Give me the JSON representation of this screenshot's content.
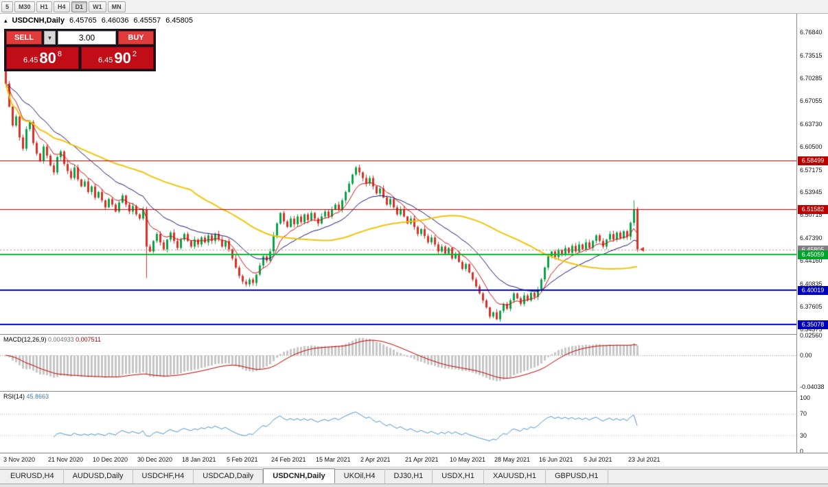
{
  "window": {
    "toolbar": {
      "timeframes": [
        "5",
        "M30",
        "H1",
        "H4",
        "D1",
        "W1",
        "MN"
      ],
      "active": "D1"
    }
  },
  "chart_header": {
    "collapse_icon": "▴",
    "title": "USDCNH,Daily",
    "open": "6.45765",
    "high": "6.46036",
    "low": "6.45557",
    "close": "6.45805"
  },
  "trade_panel": {
    "sell_label": "SELL",
    "buy_label": "BUY",
    "lot": "3.00",
    "spinner_icon": "▼",
    "sell_price": {
      "prefix": "6.45",
      "big": "80",
      "sup": "8"
    },
    "buy_price": {
      "prefix": "6.45",
      "big": "90",
      "sup": "2"
    }
  },
  "indicator_labels": {
    "macd_name": "MACD(12,26,9)",
    "macd_value": "0.004933",
    "macd_signal": "0.007511",
    "rsi_name": "RSI(14)",
    "rsi_value": "45.8663"
  },
  "tabs": {
    "items": [
      {
        "label": "EURUSD,H4",
        "active": false
      },
      {
        "label": "AUDUSD,Daily",
        "active": false
      },
      {
        "label": "USDCHF,H4",
        "active": false
      },
      {
        "label": "USDCAD,Daily",
        "active": false
      },
      {
        "label": "USDCNH,Daily",
        "active": true
      },
      {
        "label": "UKOil,H4",
        "active": false
      },
      {
        "label": "DJ30,H1",
        "active": false
      },
      {
        "label": "USDX,H1",
        "active": false
      },
      {
        "label": "XAUUSD,H1",
        "active": false
      },
      {
        "label": "GBPUSD,H1",
        "active": false
      }
    ]
  },
  "colors": {
    "candle_up": "#0aa146",
    "candle_down": "#d93025",
    "accent_red": "#bb0000",
    "accent_green": "#00a42c",
    "accent_blue": "#0000bb",
    "bid_gray": "#808080",
    "panel_bg": "#14141f",
    "button_red": "#e23b3b",
    "price_red": "#c00d18"
  },
  "chart_data": {
    "type": "candlestick",
    "symbol": "USDCNH",
    "timeframe": "Daily",
    "first_open": 6.718,
    "closes": [
      6.695,
      6.662,
      6.635,
      6.648,
      6.618,
      6.602,
      6.63,
      6.64,
      6.61,
      6.595,
      6.585,
      6.605,
      6.592,
      6.578,
      6.568,
      6.59,
      6.598,
      6.58,
      6.57,
      6.56,
      6.575,
      6.558,
      6.548,
      6.555,
      6.54,
      6.548,
      6.532,
      6.54,
      6.528,
      6.518,
      6.53,
      6.522,
      6.512,
      6.525,
      6.535,
      6.522,
      6.512,
      6.52,
      6.508,
      6.502,
      6.515,
      6.462,
      6.455,
      6.47,
      6.48,
      6.468,
      6.458,
      6.472,
      6.482,
      6.47,
      6.46,
      6.472,
      6.48,
      6.47,
      6.462,
      6.472,
      6.465,
      6.475,
      6.468,
      6.478,
      6.47,
      6.48,
      6.472,
      6.462,
      6.47,
      6.458,
      6.445,
      6.432,
      6.42,
      6.412,
      6.408,
      6.415,
      6.41,
      6.422,
      6.435,
      6.448,
      6.442,
      6.455,
      6.478,
      6.495,
      6.51,
      6.498,
      6.49,
      6.502,
      6.494,
      6.505,
      6.497,
      6.508,
      6.5,
      6.51,
      6.502,
      6.495,
      6.505,
      6.512,
      6.505,
      6.515,
      6.522,
      6.515,
      6.528,
      6.54,
      6.552,
      6.565,
      6.575,
      6.568,
      6.56,
      6.552,
      6.56,
      6.548,
      6.538,
      6.545,
      6.532,
      6.522,
      6.53,
      6.518,
      6.508,
      6.515,
      6.505,
      6.495,
      6.502,
      6.49,
      6.48,
      6.487,
      6.477,
      6.468,
      6.475,
      6.465,
      6.455,
      6.462,
      6.452,
      6.46,
      6.445,
      6.452,
      6.44,
      6.43,
      6.437,
      6.425,
      6.415,
      6.405,
      6.395,
      6.385,
      6.375,
      6.362,
      6.368,
      6.358,
      6.37,
      6.38,
      6.373,
      6.385,
      6.395,
      6.388,
      6.38,
      6.392,
      6.385,
      6.396,
      6.39,
      6.4,
      6.415,
      6.432,
      6.448,
      6.455,
      6.447,
      6.457,
      6.45,
      6.46,
      6.453,
      6.463,
      6.455,
      6.465,
      6.458,
      6.468,
      6.46,
      6.47,
      6.478,
      6.47,
      6.462,
      6.472,
      6.48,
      6.472,
      6.482,
      6.474,
      6.484,
      6.476,
      6.496,
      6.515,
      6.458
    ],
    "wick_overrides": {
      "0": {
        "high": 6.733
      },
      "41": {
        "low": 6.417
      },
      "183": {
        "high": 6.528
      }
    },
    "y_axis": {
      "top": 6.7851,
      "bottom": 6.3389,
      "ticks": [
        "6.76840",
        "6.73515",
        "6.70285",
        "6.67055",
        "6.63730",
        "6.60500",
        "6.57175",
        "6.53945",
        "6.50715",
        "6.47390",
        "6.44160",
        "6.40835",
        "6.37605",
        "6.34375"
      ]
    },
    "hlines": [
      {
        "price": 6.58499,
        "label": "6.58499",
        "color": "#bb0000",
        "badge": "#bb0000",
        "width": 1
      },
      {
        "price": 6.51582,
        "label": "6.51582",
        "color": "#bb0000",
        "badge": "#bb0000",
        "width": 1
      },
      {
        "price": 6.45059,
        "label": "6.45059",
        "color": "#00bb2d",
        "badge": "#00a42c",
        "width": 2
      },
      {
        "price": 6.40019,
        "label": "6.40019",
        "color": "#0000bb",
        "badge": "#0000bb",
        "width": 2
      },
      {
        "price": 6.35078,
        "label": "6.35078",
        "color": "#0000bb",
        "badge": "#0000bb",
        "width": 2
      }
    ],
    "bid": {
      "price": 6.45805,
      "label": "6.45805",
      "badge": "#808080"
    },
    "moving_averages": [
      {
        "period": 8,
        "method": "ema",
        "color": "#cc1111",
        "width": 1
      },
      {
        "period": 21,
        "method": "ema",
        "color": "#16166e",
        "width": 1
      },
      {
        "period": 55,
        "method": "sma",
        "color": "#f0c40a",
        "width": 2
      }
    ],
    "macd": {
      "fast": 12,
      "slow": 26,
      "signal": 9,
      "hist_color": "#c6c6c6",
      "signal_color": "#c00000",
      "scale": [
        {
          "text": "0.02560",
          "value": 0.0256
        },
        {
          "text": "0.00",
          "value": 0
        },
        {
          "text": "-0.04038",
          "value": -0.04038
        }
      ]
    },
    "rsi": {
      "period": 14,
      "color": "#4f94cd",
      "levels": [
        70,
        30
      ],
      "scale": [
        {
          "text": "100",
          "value": 100
        },
        {
          "text": "70",
          "value": 70
        },
        {
          "text": "30",
          "value": 30
        },
        {
          "text": "0",
          "value": 0
        }
      ]
    },
    "x_labels": [
      "3 Nov 2020",
      "21 Nov 2020",
      "10 Dec 2020",
      "30 Dec 2020",
      "18 Jan 2021",
      "5 Feb 2021",
      "24 Feb 2021",
      "15 Mar 2021",
      "2 Apr 2021",
      "21 Apr 2021",
      "10 May 2021",
      "28 May 2021",
      "16 Jun 2021",
      "5 Jul 2021",
      "23 Jul 2021"
    ]
  }
}
